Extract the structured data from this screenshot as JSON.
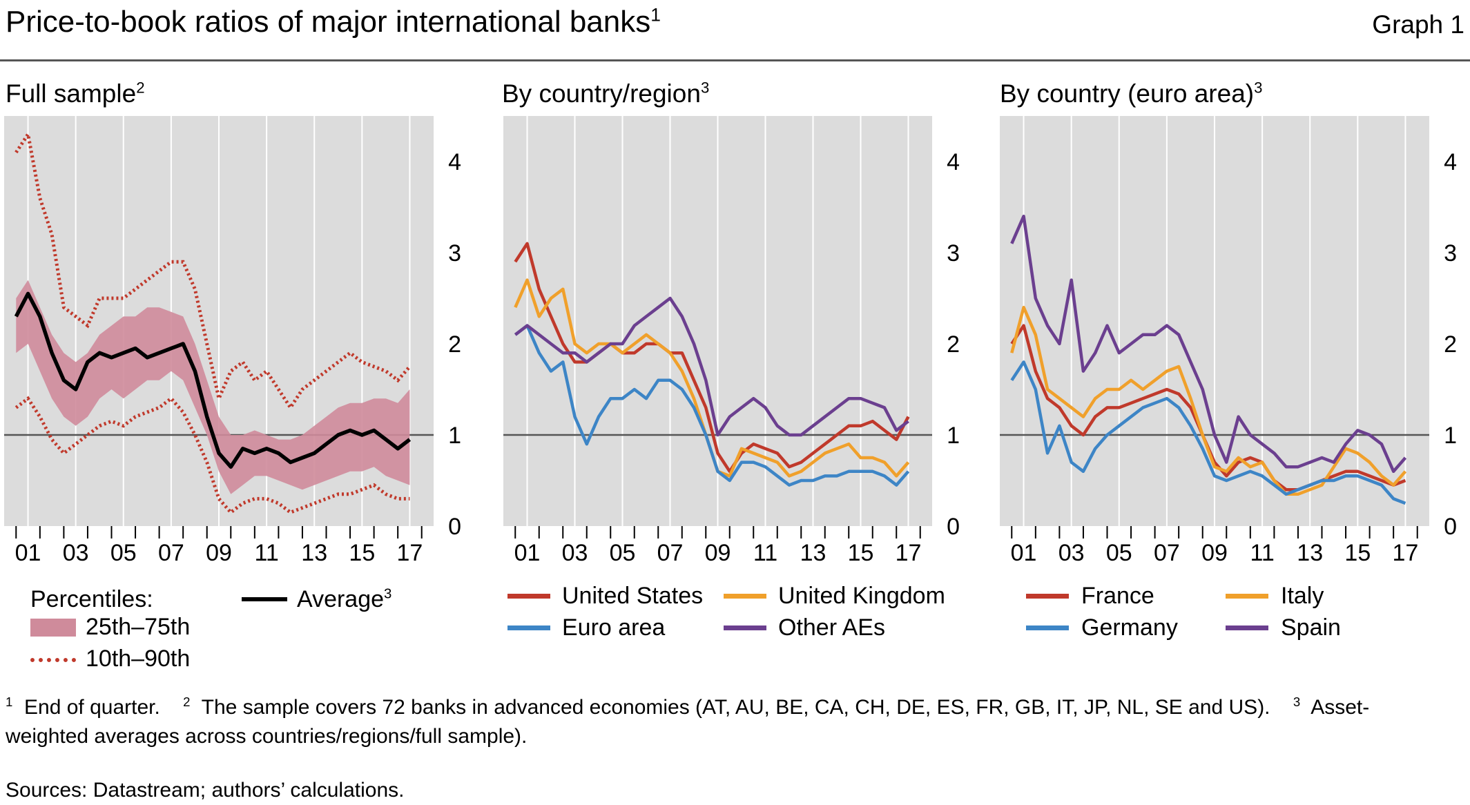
{
  "header": {
    "title": "Price-to-book ratios of major international banks",
    "title_sup": "1",
    "graph_label": "Graph 1"
  },
  "panels": [
    {
      "title": "Full sample",
      "title_sup": "2"
    },
    {
      "title": "By country/region",
      "title_sup": "3"
    },
    {
      "title": "By country (euro area)",
      "title_sup": "3"
    }
  ],
  "legend_full": {
    "percentiles_label": "Percentiles:",
    "band_label": "25th–75th",
    "dotted_label": "10th–90th",
    "average_label": "Average",
    "average_sup": "3"
  },
  "legend_region": [
    "United States",
    "United Kingdom",
    "Euro area",
    "Other AEs"
  ],
  "legend_euro": [
    "France",
    "Italy",
    "Germany",
    "Spain"
  ],
  "footnotes": {
    "n1_num": "1",
    "n1_text": "End of quarter.",
    "n2_num": "2",
    "n2_text": "The sample covers 72 banks in advanced economies (AT, AU, BE, CA, CH, DE, ES, FR, GB, IT, JP, NL, SE and US).",
    "n3_num": "3",
    "n3_text_a": "Asset-",
    "n3_text_b": "weighted averages across countries/regions/full sample).",
    "sources": "Sources: Datastream; authors’ calculations."
  },
  "colors": {
    "red": "#c0392b",
    "orange": "#f0a02b",
    "blue": "#3d85c6",
    "purple": "#6b3f8f",
    "band": "#cf8b9b",
    "black": "#000000",
    "plot_bg": "#dcdcdc"
  },
  "chart_data": [
    {
      "type": "line",
      "title": "Full sample",
      "x_tick_labels": [
        "01",
        "03",
        "05",
        "07",
        "09",
        "11",
        "13",
        "15",
        "17"
      ],
      "x_range": [
        2000.0,
        2018.0
      ],
      "ylim": [
        0,
        4.5
      ],
      "y_ticks": [
        0,
        1,
        2,
        3,
        4
      ],
      "reference_line": 1,
      "grid": true,
      "x": [
        2000.0,
        2000.5,
        2001.0,
        2001.5,
        2002.0,
        2002.5,
        2003.0,
        2003.5,
        2004.0,
        2004.5,
        2005.0,
        2005.5,
        2006.0,
        2006.5,
        2007.0,
        2007.5,
        2008.0,
        2008.5,
        2009.0,
        2009.5,
        2010.0,
        2010.5,
        2011.0,
        2011.5,
        2012.0,
        2012.5,
        2013.0,
        2013.5,
        2014.0,
        2014.5,
        2015.0,
        2015.5,
        2016.0,
        2016.5
      ],
      "series": [
        {
          "name": "25th–75th",
          "kind": "band",
          "low": [
            1.9,
            2.0,
            1.7,
            1.4,
            1.2,
            1.1,
            1.2,
            1.4,
            1.5,
            1.4,
            1.5,
            1.6,
            1.6,
            1.7,
            1.6,
            1.3,
            1.0,
            0.6,
            0.35,
            0.45,
            0.55,
            0.55,
            0.5,
            0.45,
            0.4,
            0.45,
            0.5,
            0.55,
            0.6,
            0.6,
            0.65,
            0.55,
            0.5,
            0.45
          ],
          "high": [
            2.5,
            2.7,
            2.4,
            2.1,
            1.9,
            1.8,
            1.9,
            2.1,
            2.2,
            2.3,
            2.3,
            2.4,
            2.4,
            2.35,
            2.3,
            2.0,
            1.6,
            1.2,
            1.0,
            1.0,
            1.05,
            1.0,
            0.95,
            0.95,
            1.0,
            1.1,
            1.2,
            1.3,
            1.35,
            1.35,
            1.4,
            1.4,
            1.35,
            1.5
          ]
        },
        {
          "name": "10th–90th (10th)",
          "kind": "dotted",
          "values": [
            1.3,
            1.4,
            1.2,
            0.95,
            0.8,
            0.9,
            1.0,
            1.1,
            1.15,
            1.1,
            1.2,
            1.25,
            1.3,
            1.4,
            1.25,
            1.0,
            0.7,
            0.3,
            0.15,
            0.25,
            0.3,
            0.3,
            0.25,
            0.15,
            0.2,
            0.25,
            0.3,
            0.35,
            0.35,
            0.4,
            0.45,
            0.35,
            0.3,
            0.3
          ]
        },
        {
          "name": "10th–90th (90th)",
          "kind": "dotted",
          "values": [
            4.1,
            4.3,
            3.6,
            3.2,
            2.4,
            2.3,
            2.2,
            2.5,
            2.5,
            2.5,
            2.6,
            2.7,
            2.8,
            2.9,
            2.9,
            2.6,
            2.0,
            1.4,
            1.7,
            1.8,
            1.6,
            1.7,
            1.5,
            1.3,
            1.5,
            1.6,
            1.7,
            1.8,
            1.9,
            1.8,
            1.75,
            1.7,
            1.6,
            1.75
          ]
        },
        {
          "name": "Average",
          "kind": "line",
          "values": [
            2.3,
            2.55,
            2.3,
            1.9,
            1.6,
            1.5,
            1.8,
            1.9,
            1.85,
            1.9,
            1.95,
            1.85,
            1.9,
            1.95,
            2.0,
            1.7,
            1.2,
            0.8,
            0.65,
            0.85,
            0.8,
            0.85,
            0.8,
            0.7,
            0.75,
            0.8,
            0.9,
            1.0,
            1.05,
            1.0,
            1.05,
            0.95,
            0.85,
            0.95
          ]
        }
      ]
    },
    {
      "type": "line",
      "title": "By country/region",
      "x_tick_labels": [
        "01",
        "03",
        "05",
        "07",
        "09",
        "11",
        "13",
        "15",
        "17"
      ],
      "x_range": [
        2000.0,
        2018.0
      ],
      "ylim": [
        0,
        4.5
      ],
      "y_ticks": [
        0,
        1,
        2,
        3,
        4
      ],
      "reference_line": 1,
      "grid": true,
      "x": [
        2000.0,
        2000.5,
        2001.0,
        2001.5,
        2002.0,
        2002.5,
        2003.0,
        2003.5,
        2004.0,
        2004.5,
        2005.0,
        2005.5,
        2006.0,
        2006.5,
        2007.0,
        2007.5,
        2008.0,
        2008.5,
        2009.0,
        2009.5,
        2010.0,
        2010.5,
        2011.0,
        2011.5,
        2012.0,
        2012.5,
        2013.0,
        2013.5,
        2014.0,
        2014.5,
        2015.0,
        2015.5,
        2016.0,
        2016.5
      ],
      "series": [
        {
          "name": "United States",
          "values": [
            2.9,
            3.1,
            2.6,
            2.3,
            2.0,
            1.8,
            1.8,
            1.9,
            2.0,
            1.9,
            1.9,
            2.0,
            2.0,
            1.9,
            1.9,
            1.6,
            1.3,
            0.8,
            0.6,
            0.8,
            0.9,
            0.85,
            0.8,
            0.65,
            0.7,
            0.8,
            0.9,
            1.0,
            1.1,
            1.1,
            1.15,
            1.05,
            0.95,
            1.2
          ]
        },
        {
          "name": "United Kingdom",
          "values": [
            2.4,
            2.7,
            2.3,
            2.5,
            2.6,
            2.0,
            1.9,
            2.0,
            2.0,
            1.9,
            2.0,
            2.1,
            2.0,
            1.9,
            1.7,
            1.4,
            1.0,
            0.6,
            0.55,
            0.85,
            0.8,
            0.75,
            0.7,
            0.55,
            0.6,
            0.7,
            0.8,
            0.85,
            0.9,
            0.75,
            0.75,
            0.7,
            0.55,
            0.7
          ]
        },
        {
          "name": "Euro area",
          "values": [
            2.1,
            2.2,
            1.9,
            1.7,
            1.8,
            1.2,
            0.9,
            1.2,
            1.4,
            1.4,
            1.5,
            1.4,
            1.6,
            1.6,
            1.5,
            1.3,
            1.0,
            0.6,
            0.5,
            0.7,
            0.7,
            0.65,
            0.55,
            0.45,
            0.5,
            0.5,
            0.55,
            0.55,
            0.6,
            0.6,
            0.6,
            0.55,
            0.45,
            0.6
          ]
        },
        {
          "name": "Other AEs",
          "values": [
            2.1,
            2.2,
            2.1,
            2.0,
            1.9,
            1.9,
            1.8,
            1.9,
            2.0,
            2.0,
            2.2,
            2.3,
            2.4,
            2.5,
            2.3,
            2.0,
            1.6,
            1.0,
            1.2,
            1.3,
            1.4,
            1.3,
            1.1,
            1.0,
            1.0,
            1.1,
            1.2,
            1.3,
            1.4,
            1.4,
            1.35,
            1.3,
            1.05,
            1.15
          ]
        }
      ]
    },
    {
      "type": "line",
      "title": "By country (euro area)",
      "x_tick_labels": [
        "01",
        "03",
        "05",
        "07",
        "09",
        "11",
        "13",
        "15",
        "17"
      ],
      "x_range": [
        2000.0,
        2018.0
      ],
      "ylim": [
        0,
        4.5
      ],
      "y_ticks": [
        0,
        1,
        2,
        3,
        4
      ],
      "reference_line": 1,
      "grid": true,
      "x": [
        2000.0,
        2000.5,
        2001.0,
        2001.5,
        2002.0,
        2002.5,
        2003.0,
        2003.5,
        2004.0,
        2004.5,
        2005.0,
        2005.5,
        2006.0,
        2006.5,
        2007.0,
        2007.5,
        2008.0,
        2008.5,
        2009.0,
        2009.5,
        2010.0,
        2010.5,
        2011.0,
        2011.5,
        2012.0,
        2012.5,
        2013.0,
        2013.5,
        2014.0,
        2014.5,
        2015.0,
        2015.5,
        2016.0,
        2016.5
      ],
      "series": [
        {
          "name": "France",
          "values": [
            2.0,
            2.2,
            1.7,
            1.4,
            1.3,
            1.1,
            1.0,
            1.2,
            1.3,
            1.3,
            1.35,
            1.4,
            1.45,
            1.5,
            1.45,
            1.3,
            1.0,
            0.7,
            0.55,
            0.7,
            0.75,
            0.7,
            0.5,
            0.4,
            0.4,
            0.45,
            0.5,
            0.55,
            0.6,
            0.6,
            0.55,
            0.5,
            0.45,
            0.5
          ]
        },
        {
          "name": "Italy",
          "values": [
            1.9,
            2.4,
            2.1,
            1.5,
            1.4,
            1.3,
            1.2,
            1.4,
            1.5,
            1.5,
            1.6,
            1.5,
            1.6,
            1.7,
            1.75,
            1.4,
            1.0,
            0.65,
            0.6,
            0.75,
            0.65,
            0.7,
            0.5,
            0.35,
            0.35,
            0.4,
            0.45,
            0.65,
            0.85,
            0.8,
            0.7,
            0.55,
            0.45,
            0.6
          ]
        },
        {
          "name": "Germany",
          "values": [
            1.6,
            1.8,
            1.5,
            0.8,
            1.1,
            0.7,
            0.6,
            0.85,
            1.0,
            1.1,
            1.2,
            1.3,
            1.35,
            1.4,
            1.3,
            1.1,
            0.85,
            0.55,
            0.5,
            0.55,
            0.6,
            0.55,
            0.45,
            0.35,
            0.4,
            0.45,
            0.5,
            0.5,
            0.55,
            0.55,
            0.5,
            0.45,
            0.3,
            0.25
          ]
        },
        {
          "name": "Spain",
          "values": [
            3.1,
            3.4,
            2.5,
            2.2,
            2.0,
            2.7,
            1.7,
            1.9,
            2.2,
            1.9,
            2.0,
            2.1,
            2.1,
            2.2,
            2.1,
            1.8,
            1.5,
            1.0,
            0.7,
            1.2,
            1.0,
            0.9,
            0.8,
            0.65,
            0.65,
            0.7,
            0.75,
            0.7,
            0.9,
            1.05,
            1.0,
            0.9,
            0.6,
            0.75
          ]
        }
      ]
    }
  ]
}
